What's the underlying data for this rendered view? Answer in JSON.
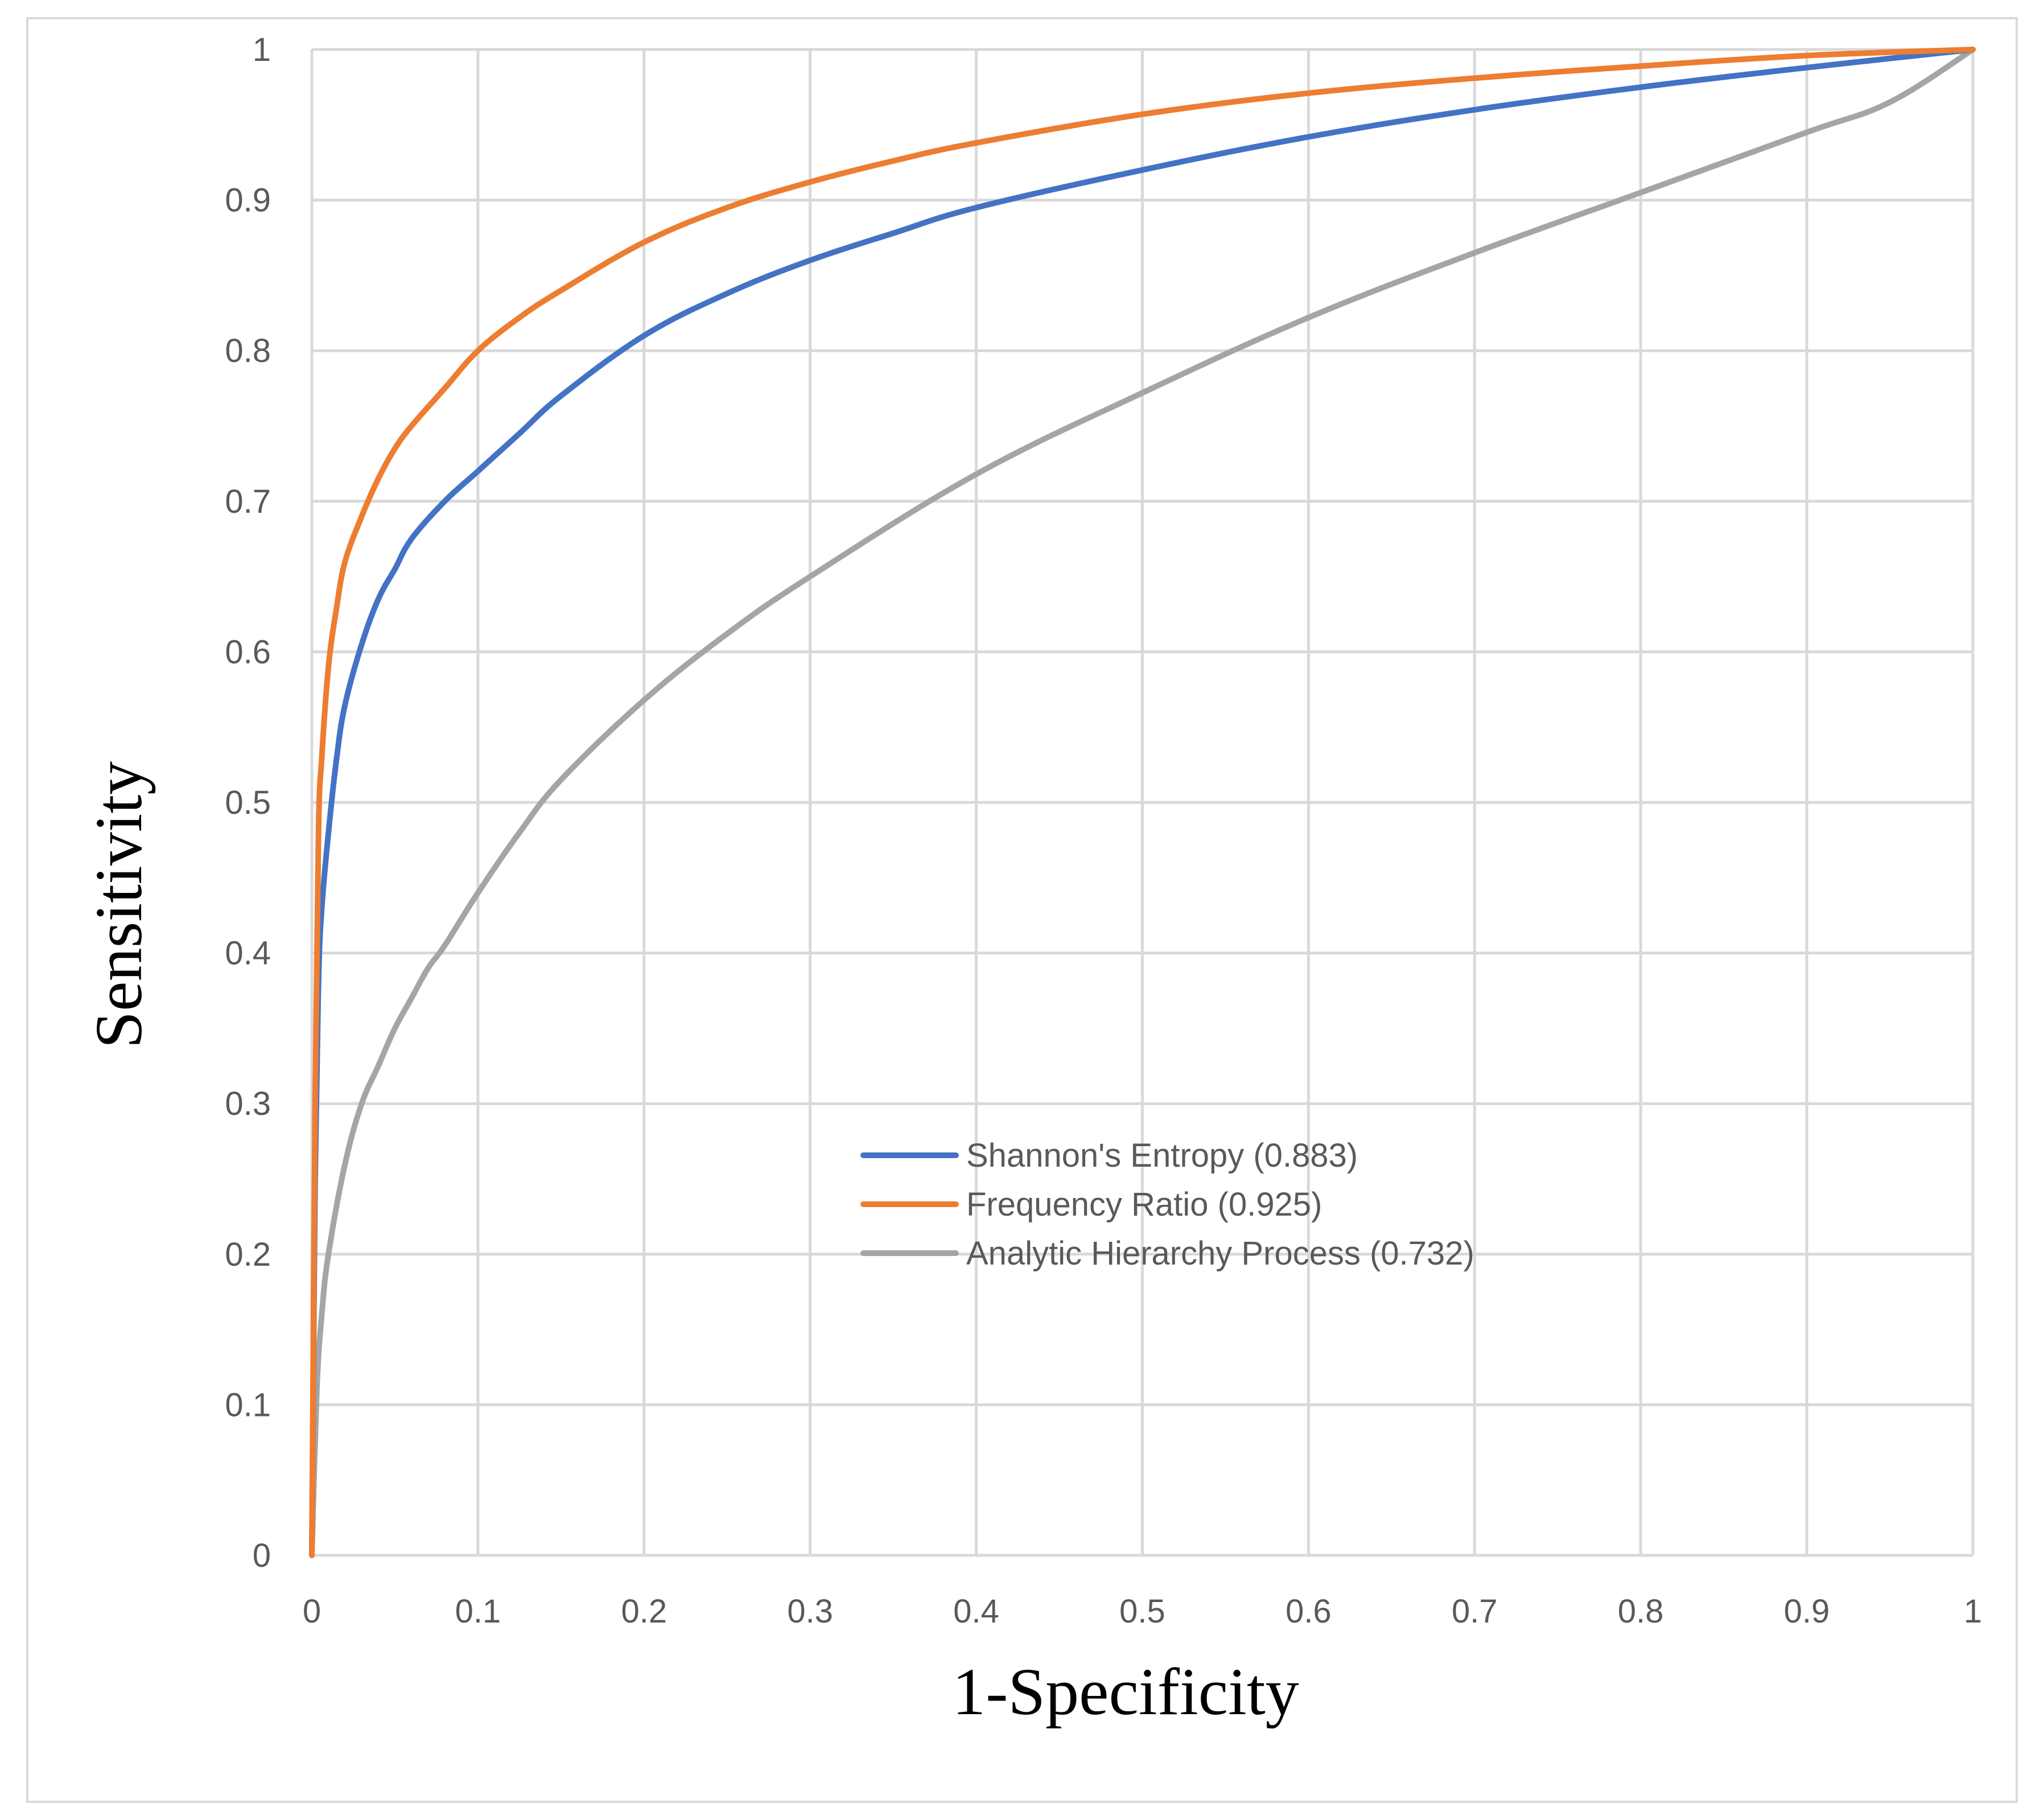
{
  "chart_data": {
    "type": "line",
    "title": "",
    "xlabel": "1-Specificity",
    "ylabel": "Sensitivity",
    "xlim": [
      0,
      1
    ],
    "ylim": [
      0,
      1
    ],
    "x_ticks": [
      "0",
      "0.1",
      "0.2",
      "0.3",
      "0.4",
      "0.5",
      "0.6",
      "0.7",
      "0.8",
      "0.9",
      "1"
    ],
    "y_ticks": [
      "0",
      "0.1",
      "0.2",
      "0.3",
      "0.4",
      "0.5",
      "0.6",
      "0.7",
      "0.8",
      "0.9",
      "1"
    ],
    "grid": true,
    "legend_position": "center-right",
    "series": [
      {
        "name": "Shannon's Entropy (0.883)",
        "color": "#4472c4",
        "x": [
          0,
          0.002,
          0.004,
          0.006,
          0.01,
          0.015,
          0.02,
          0.03,
          0.04,
          0.05,
          0.06,
          0.08,
          0.1,
          0.125,
          0.15,
          0.2,
          0.25,
          0.3,
          0.35,
          0.4,
          0.5,
          0.6,
          0.7,
          0.8,
          0.9,
          1
        ],
        "y": [
          0,
          0.25,
          0.38,
          0.43,
          0.48,
          0.53,
          0.565,
          0.605,
          0.635,
          0.655,
          0.675,
          0.7,
          0.72,
          0.745,
          0.77,
          0.81,
          0.838,
          0.86,
          0.878,
          0.895,
          0.92,
          0.942,
          0.96,
          0.975,
          0.988,
          1
        ]
      },
      {
        "name": "Frequency Ratio (0.925)",
        "color": "#ed7d31",
        "x": [
          0,
          0.002,
          0.004,
          0.006,
          0.01,
          0.015,
          0.02,
          0.03,
          0.04,
          0.05,
          0.06,
          0.08,
          0.1,
          0.125,
          0.15,
          0.2,
          0.25,
          0.3,
          0.35,
          0.4,
          0.5,
          0.6,
          0.7,
          0.8,
          0.9,
          1
        ],
        "y": [
          0,
          0.3,
          0.48,
          0.53,
          0.59,
          0.63,
          0.66,
          0.69,
          0.715,
          0.735,
          0.75,
          0.775,
          0.8,
          0.822,
          0.84,
          0.872,
          0.895,
          0.912,
          0.926,
          0.938,
          0.957,
          0.971,
          0.981,
          0.989,
          0.996,
          1
        ]
      },
      {
        "name": "Analytic Hierarchy Process (0.732)",
        "color": "#a5a5a5",
        "x": [
          0,
          0.003,
          0.006,
          0.01,
          0.02,
          0.03,
          0.04,
          0.05,
          0.06,
          0.07,
          0.08,
          0.1,
          0.125,
          0.15,
          0.2,
          0.25,
          0.3,
          0.4,
          0.5,
          0.6,
          0.7,
          0.8,
          0.9,
          0.95,
          1
        ],
        "y": [
          0,
          0.11,
          0.16,
          0.2,
          0.26,
          0.3,
          0.325,
          0.35,
          0.37,
          0.39,
          0.405,
          0.44,
          0.48,
          0.515,
          0.568,
          0.612,
          0.65,
          0.718,
          0.772,
          0.822,
          0.865,
          0.905,
          0.945,
          0.965,
          1
        ]
      }
    ]
  }
}
